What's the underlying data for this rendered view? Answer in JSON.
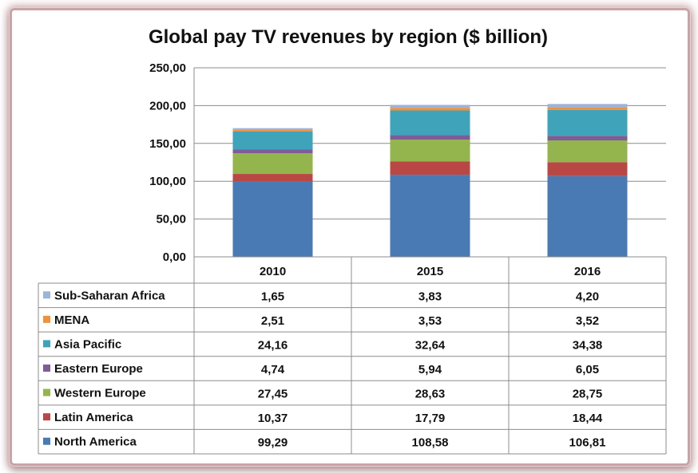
{
  "chart_data": {
    "type": "bar",
    "stacked": true,
    "title": "Global pay TV revenues by region ($ billion)",
    "categories": [
      "2010",
      "2015",
      "2016"
    ],
    "ylim": [
      0,
      250
    ],
    "yticks": [
      "0,00",
      "50,00",
      "100,00",
      "150,00",
      "200,00",
      "250,00"
    ],
    "grid": true,
    "legend_placement": "data-table-left",
    "series": [
      {
        "name": "North America",
        "color": "#4a7ab4",
        "values": [
          99.29,
          108.58,
          106.81
        ],
        "labels": [
          "99,29",
          "108,58",
          "106,81"
        ]
      },
      {
        "name": "Latin America",
        "color": "#b94844",
        "values": [
          10.37,
          17.79,
          18.44
        ],
        "labels": [
          "10,37",
          "17,79",
          "18,44"
        ]
      },
      {
        "name": "Western Europe",
        "color": "#94b44e",
        "values": [
          27.45,
          28.63,
          28.75
        ],
        "labels": [
          "27,45",
          "28,63",
          "28,75"
        ]
      },
      {
        "name": "Eastern Europe",
        "color": "#7d5c98",
        "values": [
          4.74,
          5.94,
          6.05
        ],
        "labels": [
          "4,74",
          "5,94",
          "6,05"
        ]
      },
      {
        "name": "Asia Pacific",
        "color": "#3fa3ba",
        "values": [
          24.16,
          32.64,
          34.38
        ],
        "labels": [
          "24,16",
          "32,64",
          "34,38"
        ]
      },
      {
        "name": "MENA",
        "color": "#ee9240",
        "values": [
          2.51,
          3.53,
          3.52
        ],
        "labels": [
          "2,51",
          "3,53",
          "3,52"
        ]
      },
      {
        "name": "Sub-Saharan Africa",
        "color": "#9db4d9",
        "values": [
          1.65,
          3.83,
          4.2
        ],
        "labels": [
          "1,65",
          "3,83",
          "4,20"
        ]
      }
    ]
  }
}
